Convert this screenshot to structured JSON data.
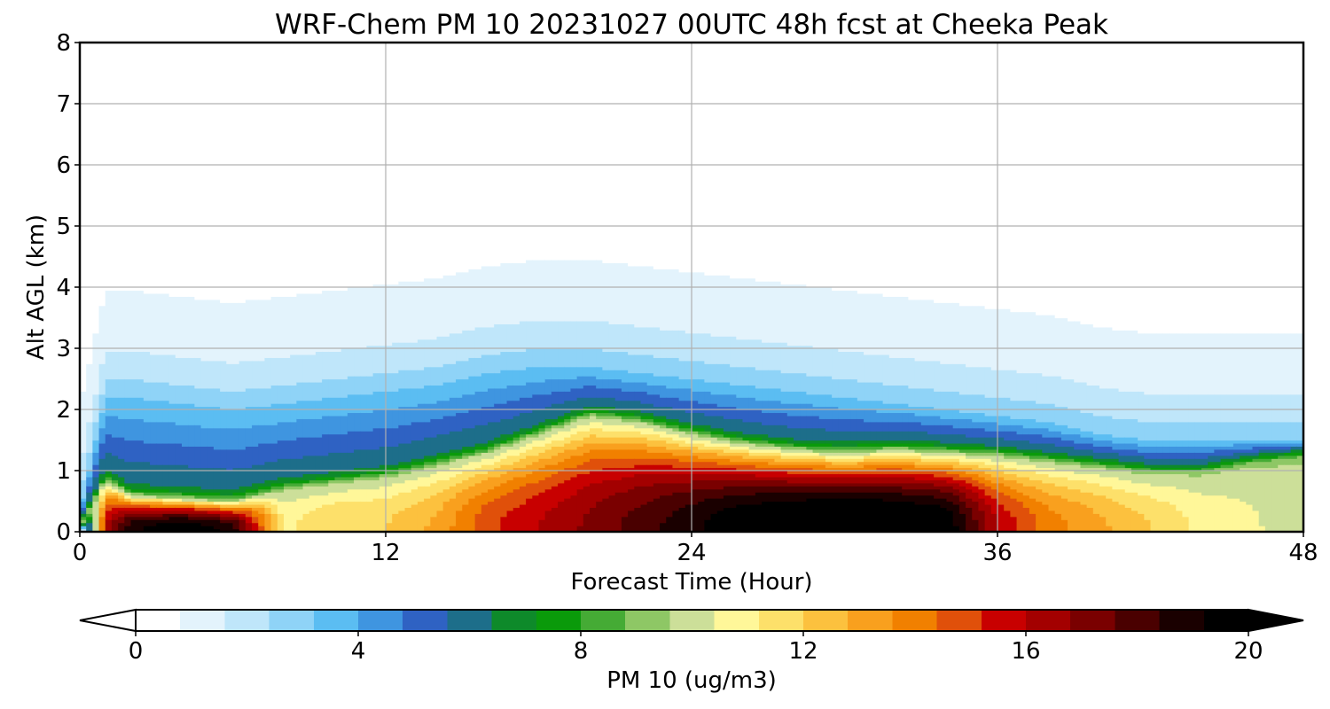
{
  "chart_data": {
    "type": "heatmap",
    "title": "WRF-Chem PM 10  20231027 00UTC 48h fcst at Cheeka Peak",
    "xlabel": "Forecast Time (Hour)",
    "ylabel": "Alt AGL (km)",
    "xlim": [
      0,
      48
    ],
    "ylim": [
      0,
      8
    ],
    "xticks": [
      "0",
      "12",
      "24",
      "36",
      "48"
    ],
    "yticks": [
      "0",
      "1",
      "2",
      "3",
      "4",
      "5",
      "6",
      "7",
      "8"
    ],
    "grid": true,
    "x_hours": [
      0,
      1,
      2,
      4,
      6,
      8,
      10,
      12,
      14,
      16,
      18,
      20,
      22,
      24,
      26,
      28,
      30,
      32,
      34,
      36,
      38,
      40,
      42,
      44,
      46,
      48
    ],
    "z_km": [
      0,
      0.25,
      0.5,
      0.75,
      1.0,
      1.25,
      1.5,
      1.75,
      2.0,
      2.5,
      3.0,
      3.5,
      4.0,
      5.0,
      6.0,
      7.0,
      8.0
    ],
    "profile_params": {
      "surface_value": [
        0,
        16,
        19,
        20,
        19,
        11,
        12,
        12,
        13,
        15,
        16,
        17,
        18,
        19,
        20,
        20.5,
        21,
        20.5,
        20,
        16,
        14,
        13,
        12,
        11,
        10.5,
        10
      ],
      "mixing_height_km": [
        0.05,
        0.85,
        0.6,
        0.55,
        0.5,
        0.7,
        0.8,
        0.9,
        1.1,
        1.3,
        1.6,
        1.9,
        1.8,
        1.6,
        1.45,
        1.35,
        1.3,
        1.35,
        1.3,
        1.25,
        1.15,
        1.05,
        0.95,
        0.95,
        1.1,
        1.2
      ],
      "residual_layer_km": [
        0.3,
        2.2,
        2.2,
        2.1,
        2.0,
        2.1,
        2.2,
        2.3,
        2.4,
        2.6,
        2.7,
        2.7,
        2.6,
        2.5,
        2.4,
        2.3,
        2.2,
        2.1,
        2.0,
        1.9,
        1.8,
        1.6,
        1.5,
        1.5,
        1.5,
        1.5
      ],
      "background_aloft": 0.4
    },
    "colorbar": {
      "label": "PM 10  (ug/m3)",
      "ticks": [
        "0",
        "4",
        "8",
        "12",
        "16",
        "20"
      ],
      "vmin": 0,
      "vmax": 20,
      "extend": "both",
      "colors": [
        "#ffffff",
        "#e3f3fc",
        "#bfe6fa",
        "#8fd3f7",
        "#5bbdf2",
        "#3f95e0",
        "#2f62c3",
        "#1d6e8a",
        "#0e8a2a",
        "#0a9a0a",
        "#45ab35",
        "#8ec765",
        "#ccdf99",
        "#fff799",
        "#fde06a",
        "#fcc13e",
        "#f9a01e",
        "#f18000",
        "#e0500a",
        "#c80000",
        "#a30000",
        "#7a0000",
        "#4a0000",
        "#1a0000",
        "#000000"
      ]
    }
  }
}
